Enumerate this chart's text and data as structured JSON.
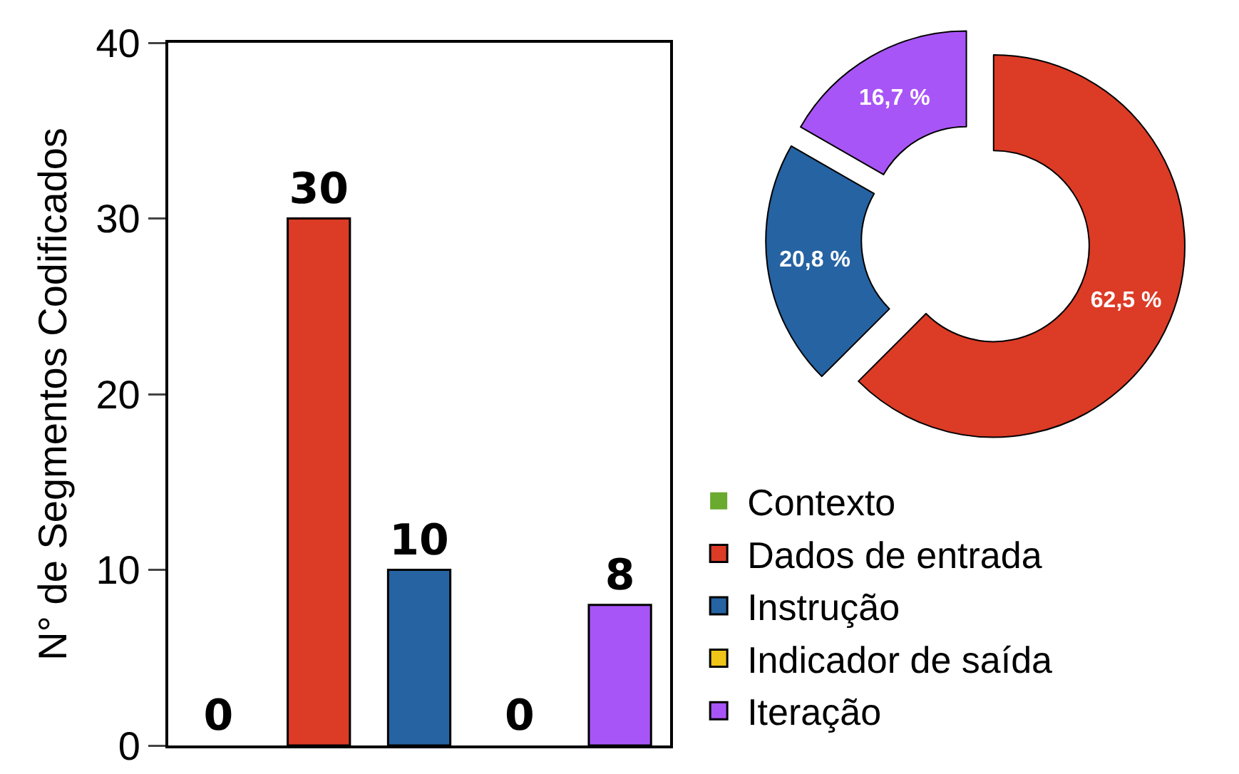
{
  "chart_data": [
    {
      "type": "bar",
      "ylabel": "N° de Segmentos Codificados",
      "categories": [
        null,
        null,
        null,
        null,
        null
      ],
      "series": [
        {
          "name": "Contexto",
          "color": "#6aaa2e",
          "values": [
            0,
            null,
            null,
            null,
            null
          ]
        },
        {
          "name": "Dados de entrada",
          "color": "#dc3b26",
          "values": [
            null,
            30,
            null,
            null,
            null
          ]
        },
        {
          "name": "Instrução",
          "color": "#2563a3",
          "values": [
            null,
            null,
            10,
            null,
            null
          ]
        },
        {
          "name": "Indicador de saída",
          "color": "#f0c419",
          "values": [
            null,
            null,
            null,
            0,
            null
          ]
        },
        {
          "name": "Iteração",
          "color": "#a855f7",
          "values": [
            null,
            null,
            null,
            null,
            8
          ]
        }
      ],
      "ylim": [
        0,
        40
      ],
      "yticks": [
        0,
        10,
        20,
        30,
        40
      ],
      "tick_labels": "y",
      "data_labels": true,
      "grid": false,
      "legend": "bottom right"
    },
    {
      "type": "donut",
      "categories": [
        null,
        null,
        null
      ],
      "values": [
        62.5,
        20.8,
        16.7
      ],
      "colors": [
        "#dc3b26",
        "#2563a3",
        "#a855f7"
      ],
      "value_labels": [
        "62,5 %",
        "20,8 %",
        "16,7 %"
      ]
    }
  ]
}
